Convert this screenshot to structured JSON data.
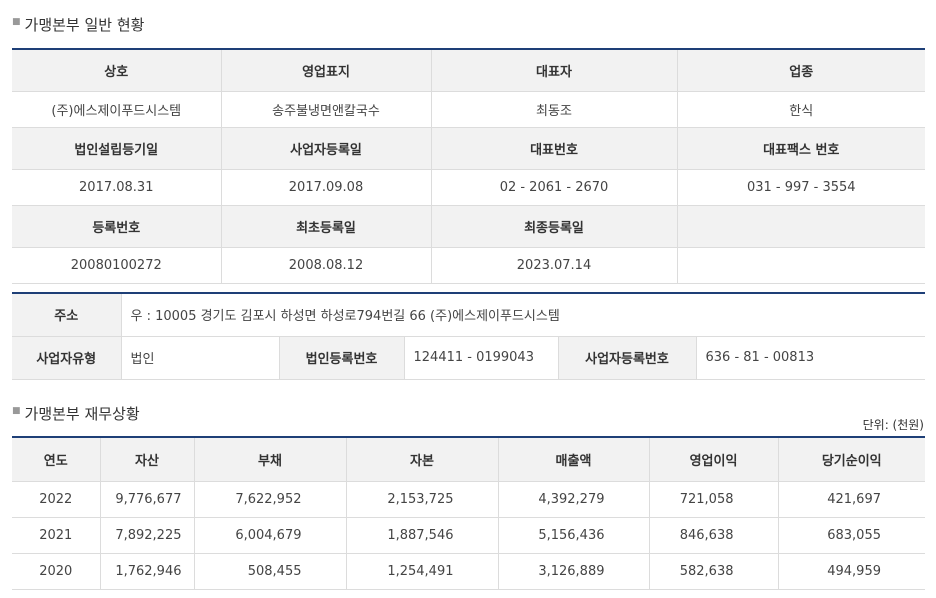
{
  "general": {
    "title": "가맹본부 일반 현황",
    "headers1": [
      "상호",
      "영업표지",
      "대표자",
      "업종"
    ],
    "values1": [
      "(주)에스제이푸드시스템",
      "송주불냉면앤칼국수",
      "최동조",
      "한식"
    ],
    "headers2": [
      "법인설립등기일",
      "사업자등록일",
      "대표번호",
      "대표팩스 번호"
    ],
    "values2": [
      "2017.08.31",
      "2017.09.08",
      "02 - 2061 - 2670",
      "031 - 997 - 3554"
    ],
    "headers3": [
      "등록번호",
      "최초등록일",
      "최종등록일",
      ""
    ],
    "values3": [
      "20080100272",
      "2008.08.12",
      "2023.07.14",
      ""
    ]
  },
  "address": {
    "address_label": "주소",
    "address_value": "우 : 10005 경기도 김포시 하성면 하성로794번길 66 (주)에스제이푸드시스템",
    "biz_type_label": "사업자유형",
    "biz_type_value": "법인",
    "corp_reg_label": "법인등록번호",
    "corp_reg_value": "124411 - 0199043",
    "biz_reg_label": "사업자등록번호",
    "biz_reg_value": "636 - 81 - 00813"
  },
  "finance": {
    "title": "가맹본부 재무상황",
    "unit": "단위: (천원)",
    "headers": [
      "연도",
      "자산",
      "부채",
      "자본",
      "매출액",
      "영업이익",
      "당기순이익"
    ],
    "rows": [
      [
        "2022",
        "9,776,677",
        "7,622,952",
        "2,153,725",
        "4,392,279",
        "721,058",
        "421,697"
      ],
      [
        "2021",
        "7,892,225",
        "6,004,679",
        "1,887,546",
        "5,156,436",
        "846,638",
        "683,055"
      ],
      [
        "2020",
        "1,762,946",
        "508,455",
        "1,254,491",
        "3,126,889",
        "582,638",
        "494,959"
      ]
    ]
  }
}
